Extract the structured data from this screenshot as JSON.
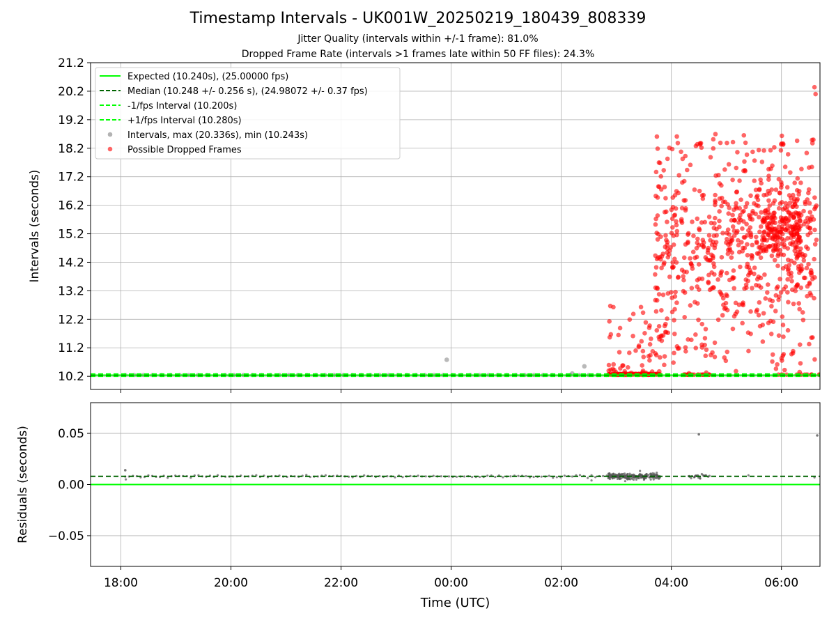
{
  "title": "Timestamp Intervals - UK001W_20250219_180439_808339",
  "subtitle_1": "Jitter Quality (intervals within +/-1 frame): 81.0%",
  "subtitle_2": "Dropped Frame Rate (intervals >1 frames late within 50 FF files): 24.3%",
  "colors": {
    "expected": "#00ff00",
    "median": "#006400",
    "interval_points": "#808080",
    "dropped_points": "#ff0000",
    "grid": "#b0b0b0"
  },
  "chart_data": [
    {
      "type": "scatter",
      "name": "intervals",
      "ylabel": "Intervals (seconds)",
      "xlim": [
        -0.55,
        12.7
      ],
      "ylim": [
        9.74,
        21.2
      ],
      "yticks": [
        10.2,
        11.2,
        12.2,
        13.2,
        14.2,
        15.2,
        16.2,
        17.2,
        18.2,
        19.2,
        20.2,
        21.2
      ],
      "ytick_labels": [
        "10.2",
        "11.2",
        "12.2",
        "13.2",
        "14.2",
        "15.2",
        "16.2",
        "17.2",
        "18.2",
        "19.2",
        "20.2",
        "21.2"
      ],
      "xticks": [
        0,
        2,
        4,
        6,
        8,
        10,
        12
      ],
      "grid": true,
      "legend_position": "upper-left",
      "legend": [
        "Expected (10.240s), (25.00000 fps)",
        "Median (10.248 +/- 0.256 s), (24.98072 +/- 0.37 fps)",
        "-1/fps Interval (10.200s)",
        "+1/fps Interval (10.280s)",
        "Intervals, max (20.336s), min (10.243s)",
        "Possible Dropped Frames"
      ],
      "lines": {
        "expected": 10.24,
        "median": 10.248,
        "minus_1fps": 10.2,
        "plus_1fps": 10.28
      },
      "intervals_highlight": [
        {
          "x": 5.92,
          "y": 10.78
        },
        {
          "x": 8.2,
          "y": 10.3
        },
        {
          "x": 8.42,
          "y": 10.55
        }
      ],
      "dropped_points_note": "dense cluster of possible dropped frames between about 02:50 and 06:45 UTC, intervals 10.2 s to 20.34 s"
    },
    {
      "type": "scatter",
      "name": "residuals",
      "xlabel": "Time (UTC)",
      "ylabel": "Residuals (seconds)",
      "xlim": [
        -0.55,
        12.7
      ],
      "ylim": [
        -0.08,
        0.08
      ],
      "yticks": [
        -0.05,
        0.0,
        0.05
      ],
      "ytick_labels": [
        "−0.05",
        "0.00",
        "0.05"
      ],
      "xticks": [
        0,
        2,
        4,
        6,
        8,
        10,
        12
      ],
      "xtick_labels": [
        "18:00",
        "20:00",
        "22:00",
        "00:00",
        "02:00",
        "04:00",
        "06:00"
      ],
      "grid": true,
      "lines": {
        "expected": 0.0,
        "median": 0.008
      },
      "highlight_points": [
        {
          "x": 0.08,
          "y": 0.014
        },
        {
          "x": 10.5,
          "y": 0.049
        },
        {
          "x": 12.65,
          "y": 0.048
        }
      ]
    }
  ]
}
